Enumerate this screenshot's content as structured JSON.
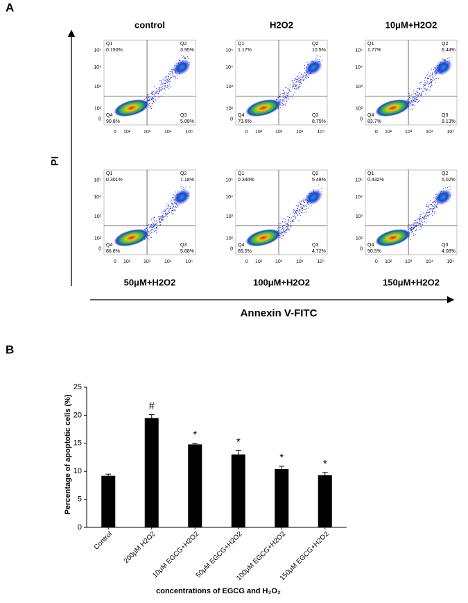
{
  "panel_a": {
    "label": "A",
    "y_axis_title": "PI",
    "x_axis_title": "Annexin V-FITC",
    "axis_ticks": [
      "0",
      "10²",
      "10³",
      "10⁴",
      "10⁵"
    ],
    "plots": [
      {
        "title": "control",
        "quadrants": [
          {
            "name": "Q1",
            "value": "0.150%"
          },
          {
            "name": "Q2",
            "value": "3.95%"
          },
          {
            "name": "Q3",
            "value": "5.08%"
          },
          {
            "name": "Q4",
            "value": "90.8%"
          }
        ]
      },
      {
        "title": "H2O2",
        "quadrants": [
          {
            "name": "Q1",
            "value": "1.17%"
          },
          {
            "name": "Q2",
            "value": "10.5%"
          },
          {
            "name": "Q3",
            "value": "8.75%"
          },
          {
            "name": "Q4",
            "value": "79.6%"
          }
        ]
      },
      {
        "title": "10μM+H2O2",
        "quadrants": [
          {
            "name": "Q1",
            "value": "1.77%"
          },
          {
            "name": "Q2",
            "value": "6.44%"
          },
          {
            "name": "Q3",
            "value": "8.13%"
          },
          {
            "name": "Q4",
            "value": "83.7%"
          }
        ]
      },
      {
        "title": "50μM+H2O2",
        "quadrants": [
          {
            "name": "Q1",
            "value": "0.301%"
          },
          {
            "name": "Q2",
            "value": "7.18%"
          },
          {
            "name": "Q3",
            "value": "5.68%"
          },
          {
            "name": "Q4",
            "value": "86.8%"
          }
        ]
      },
      {
        "title": "100μM+H2O2",
        "quadrants": [
          {
            "name": "Q1",
            "value": "0.346%"
          },
          {
            "name": "Q2",
            "value": "5.48%"
          },
          {
            "name": "Q3",
            "value": "4.72%"
          },
          {
            "name": "Q4",
            "value": "89.5%"
          }
        ]
      },
      {
        "title": "150μM+H2O2",
        "quadrants": [
          {
            "name": "Q1",
            "value": "0.432%"
          },
          {
            "name": "Q2",
            "value": "5.02%"
          },
          {
            "name": "Q3",
            "value": "4.08%"
          },
          {
            "name": "Q4",
            "value": "90.5%"
          }
        ]
      }
    ]
  },
  "panel_b": {
    "label": "B",
    "chart_data": {
      "type": "bar",
      "y_label": "Percentage of apoptotic cells (%)",
      "x_label": "concentrations of EGCG and H₂O₂",
      "categories": [
        "Control",
        "200μM H2O2",
        "10μM EGCG+H2O2",
        "50μM EGCG+H2O2",
        "100μM EGCG+H2O2",
        "150μM EGCG+H2O2"
      ],
      "values": [
        9.2,
        19.5,
        14.8,
        13.0,
        10.4,
        9.3
      ],
      "errors": [
        0.3,
        0.6,
        0.15,
        0.7,
        0.5,
        0.5
      ],
      "annotations": [
        null,
        "#",
        "*",
        "*",
        "*",
        "*"
      ],
      "color": "#000000",
      "ylim": [
        0,
        25
      ],
      "yticks": [
        0,
        5,
        10,
        15,
        20,
        25
      ]
    }
  }
}
